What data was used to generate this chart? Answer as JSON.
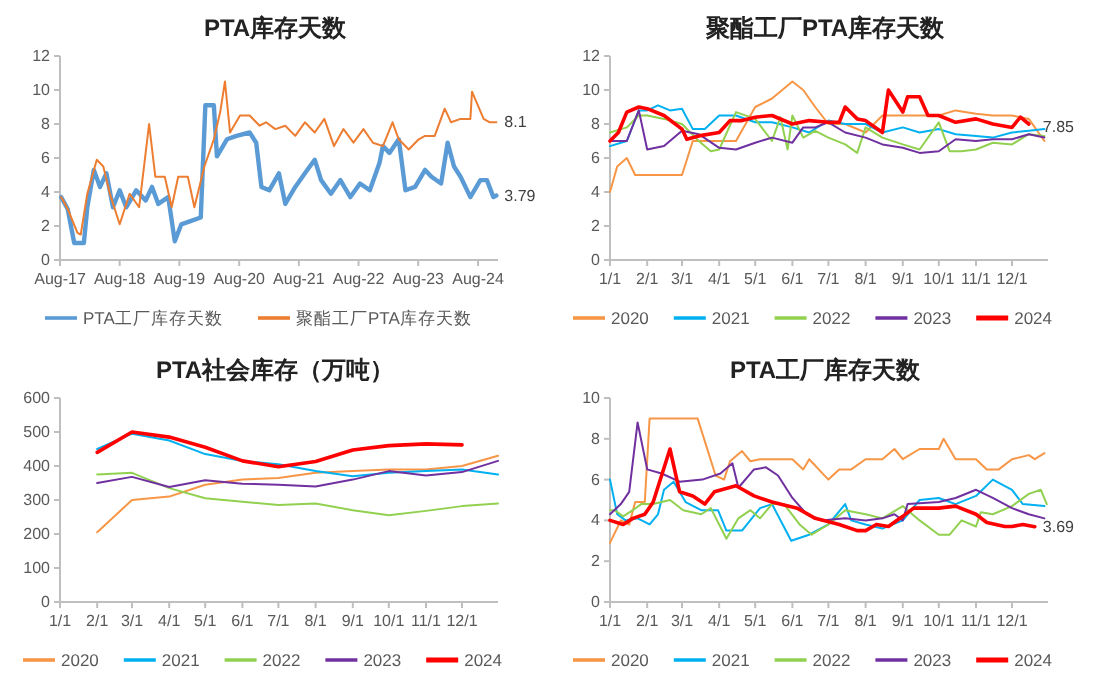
{
  "chart_data": [
    {
      "type": "line",
      "title": "PTA库存天数",
      "legend": "bottom",
      "grid": false,
      "xlim": [
        "2017-08",
        "2024-12"
      ],
      "ylim": [
        0,
        12
      ],
      "yticks": [
        0,
        2,
        4,
        6,
        8,
        10,
        12
      ],
      "xticks": [
        {
          "value": "2017-08",
          "label": "Aug-17"
        },
        {
          "value": "2018-08",
          "label": "Aug-18"
        },
        {
          "value": "2019-08",
          "label": "Aug-19"
        },
        {
          "value": "2020-08",
          "label": "Aug-20"
        },
        {
          "value": "2021-08",
          "label": "Aug-21"
        },
        {
          "value": "2022-08",
          "label": "Aug-22"
        },
        {
          "value": "2023-08",
          "label": "Aug-23"
        },
        {
          "value": "2024-08",
          "label": "Aug-24"
        }
      ],
      "series": [
        {
          "name": "PTA工厂库存天数",
          "color": "#5b9bd5",
          "x": [
            "2017-08-08",
            "2017-09-17",
            "2017-10-27",
            "2017-12-25",
            "2018-01-15",
            "2018-02-24",
            "2018-04-03",
            "2018-05-12",
            "2018-06-21",
            "2018-08-01",
            "2018-09-10",
            "2018-11-10",
            "2019-01-07",
            "2019-02-15",
            "2019-03-25",
            "2019-05-25",
            "2019-07-04",
            "2019-08-13",
            "2019-10-12",
            "2019-12-10",
            "2020-01-07",
            "2020-02-28",
            "2020-03-18",
            "2020-05-18",
            "2020-07-16",
            "2020-10-04",
            "2020-11-13",
            "2020-12-15",
            "2021-02-01",
            "2021-04-01",
            "2021-05-10",
            "2021-07-10",
            "2021-09-07",
            "2021-11-06",
            "2021-12-15",
            "2022-02-13",
            "2022-04-12",
            "2022-06-12",
            "2022-08-10",
            "2022-10-09",
            "2022-12-07",
            "2022-12-28",
            "2023-02-06",
            "2023-04-04",
            "2023-05-15",
            "2023-07-13",
            "2023-09-12",
            "2023-10-21",
            "2023-12-19",
            "2024-01-28",
            "2024-03-07",
            "2024-04-16",
            "2024-06-15",
            "2024-08-15",
            "2024-09-24",
            "2024-11-03",
            "2024-11-21"
          ],
          "values": [
            3.7,
            3,
            1,
            1,
            3.1,
            5.3,
            4.3,
            5.1,
            3.1,
            4.1,
            3.1,
            4.1,
            3.5,
            4.3,
            3.3,
            3.7,
            1.1,
            2.1,
            2.3,
            2.5,
            9.1,
            9.1,
            6.1,
            7.1,
            7.3,
            7.5,
            6.9,
            4.3,
            4.1,
            5.1,
            3.3,
            4.3,
            5.1,
            5.9,
            4.7,
            3.9,
            4.7,
            3.7,
            4.5,
            4.1,
            5.7,
            6.7,
            6.3,
            7.1,
            4.1,
            4.3,
            5.3,
            4.9,
            4.5,
            6.9,
            5.5,
            4.9,
            3.7,
            4.7,
            4.7,
            3.7,
            3.79
          ]
        },
        {
          "name": "聚酯工厂PTA库存天数",
          "color": "#ed7d31",
          "x": [
            "2017-08-08",
            "2017-09-17",
            "2017-11-16",
            "2017-12-06",
            "2018-01-15",
            "2018-03-14",
            "2018-04-23",
            "2018-06-02",
            "2018-08-01",
            "2018-10-01",
            "2018-11-28",
            "2019-01-28",
            "2019-03-07",
            "2019-05-04",
            "2019-06-15",
            "2019-07-25",
            "2019-09-22",
            "2019-11-01",
            "2020-01-01",
            "2020-02-28",
            "2020-04-07",
            "2020-05-06",
            "2020-06-06",
            "2020-08-06",
            "2020-10-04",
            "2020-12-04",
            "2021-01-12",
            "2021-03-10",
            "2021-05-10",
            "2021-07-10",
            "2021-09-07",
            "2021-11-06",
            "2022-01-04",
            "2022-03-04",
            "2022-05-01",
            "2022-07-01",
            "2022-08-31",
            "2022-10-28",
            "2022-12-28",
            "2023-02-25",
            "2023-04-04",
            "2023-06-04",
            "2023-08-04",
            "2023-09-12",
            "2023-11-10",
            "2024-01-10",
            "2024-02-18",
            "2024-04-16",
            "2024-06-15",
            "2024-06-25",
            "2024-09-04",
            "2024-10-12",
            "2024-11-21"
          ],
          "values": [
            3.7,
            3,
            1.6,
            1.5,
            3.9,
            5.9,
            5.5,
            3.9,
            2.1,
            3.9,
            3.1,
            8,
            4.9,
            4.9,
            3.1,
            4.9,
            4.9,
            3.1,
            5.5,
            7.1,
            8.7,
            10.5,
            7.5,
            8.5,
            8.5,
            7.9,
            8.1,
            7.7,
            7.9,
            7.3,
            8.1,
            7.5,
            8.3,
            6.7,
            7.7,
            6.9,
            7.7,
            6.9,
            6.7,
            8.1,
            7.1,
            6.5,
            7.1,
            7.3,
            7.3,
            8.9,
            8.1,
            8.3,
            8.3,
            9.9,
            8.3,
            8.1,
            8.1
          ]
        }
      ],
      "annotations": [
        {
          "text": "8.1",
          "x": "2024-11-21",
          "y": 8.1
        },
        {
          "text": "3.79",
          "x": "2024-11-21",
          "y": 3.79
        }
      ]
    },
    {
      "type": "line",
      "title": "聚酯工厂PTA库存天数",
      "legend": "bottom",
      "grid": false,
      "xlim": [
        "--01-01",
        "--12-31"
      ],
      "ylim": [
        0,
        12
      ],
      "yticks": [
        0,
        2,
        4,
        6,
        8,
        10,
        12
      ],
      "xticks": [
        {
          "value": "--01-01",
          "label": "1/1"
        },
        {
          "value": "--02-01",
          "label": "2/1"
        },
        {
          "value": "--03-01",
          "label": "3/1"
        },
        {
          "value": "--04-01",
          "label": "4/1"
        },
        {
          "value": "--05-01",
          "label": "5/1"
        },
        {
          "value": "--06-01",
          "label": "6/1"
        },
        {
          "value": "--07-01",
          "label": "7/1"
        },
        {
          "value": "--08-01",
          "label": "8/1"
        },
        {
          "value": "--09-01",
          "label": "9/1"
        },
        {
          "value": "--10-01",
          "label": "10/1"
        },
        {
          "value": "--11-01",
          "label": "11/1"
        },
        {
          "value": "--12-01",
          "label": "12/1"
        }
      ],
      "series": [
        {
          "name": "2020",
          "color": "#f79646",
          "x": [
            "--01-01",
            "--01-07",
            "--01-15",
            "--01-22",
            "--02-01",
            "--03-01",
            "--03-10",
            "--04-01",
            "--04-15",
            "--05-01",
            "--05-15",
            "--06-01",
            "--06-10",
            "--06-20",
            "--07-01",
            "--07-15",
            "--08-01",
            "--08-15",
            "--09-01",
            "--09-15",
            "--10-01",
            "--10-15",
            "--11-01",
            "--11-15",
            "--12-01",
            "--12-15",
            "--12-28"
          ],
          "values": [
            4,
            5.5,
            6,
            5,
            5,
            5,
            7,
            7,
            7,
            9,
            9.5,
            10.5,
            10,
            9,
            8,
            8,
            7.5,
            8.5,
            8.5,
            8.5,
            8.5,
            8.8,
            8.6,
            8.5,
            8.5,
            8.3,
            7
          ]
        },
        {
          "name": "2021",
          "color": "#00b0f0",
          "x": [
            "--01-01",
            "--01-15",
            "--01-25",
            "--02-01",
            "--02-10",
            "--02-20",
            "--03-01",
            "--03-10",
            "--03-20",
            "--04-01",
            "--04-15",
            "--05-01",
            "--05-15",
            "--06-01",
            "--06-15",
            "--07-01",
            "--07-15",
            "--08-01",
            "--08-15",
            "--09-01",
            "--09-15",
            "--10-01",
            "--10-15",
            "--11-01",
            "--11-15",
            "--12-01",
            "--12-15",
            "--12-28"
          ],
          "values": [
            6.7,
            7,
            8.8,
            8.8,
            9.1,
            8.8,
            8.9,
            7.7,
            7.7,
            8.5,
            8.5,
            8.1,
            8.1,
            7.8,
            7.5,
            8.2,
            8,
            8,
            7.5,
            7.8,
            7.5,
            7.7,
            7.4,
            7.3,
            7.2,
            7.5,
            7.6,
            7.7
          ]
        },
        {
          "name": "2022",
          "color": "#92d050",
          "x": [
            "--01-01",
            "--01-15",
            "--01-25",
            "--02-01",
            "--02-15",
            "--03-01",
            "--03-15",
            "--03-25",
            "--04-01",
            "--04-15",
            "--05-01",
            "--05-15",
            "--05-22",
            "--05-28",
            "--06-01",
            "--06-10",
            "--06-20",
            "--07-01",
            "--07-15",
            "--07-25",
            "--08-01",
            "--08-15",
            "--09-01",
            "--09-15",
            "--10-01",
            "--10-10",
            "--10-20",
            "--11-01",
            "--11-15",
            "--12-01",
            "--12-15",
            "--12-28"
          ],
          "values": [
            7.5,
            7.8,
            8.5,
            8.5,
            8.3,
            8,
            7,
            6.4,
            6.5,
            8.7,
            8.3,
            7,
            8.4,
            6.5,
            8.5,
            7.2,
            7.6,
            7.2,
            6.8,
            6.3,
            7.8,
            7.2,
            6.8,
            6.5,
            8.1,
            6.4,
            6.4,
            6.5,
            6.9,
            6.8,
            7.4,
            7.3
          ]
        },
        {
          "name": "2023",
          "color": "#7030a0",
          "x": [
            "--01-01",
            "--01-15",
            "--01-25",
            "--02-01",
            "--02-15",
            "--03-01",
            "--03-15",
            "--04-01",
            "--04-15",
            "--05-01",
            "--05-15",
            "--06-01",
            "--06-10",
            "--06-20",
            "--07-01",
            "--07-15",
            "--08-01",
            "--08-15",
            "--09-01",
            "--09-15",
            "--10-01",
            "--10-15",
            "--11-01",
            "--11-15",
            "--12-01",
            "--12-15",
            "--12-28"
          ],
          "values": [
            7,
            7,
            8.8,
            6.5,
            6.7,
            7.6,
            7.4,
            6.6,
            6.5,
            6.9,
            7.2,
            6.9,
            7.8,
            7.8,
            8.1,
            7.5,
            7.2,
            6.8,
            6.6,
            6.3,
            6.4,
            7.1,
            7,
            7.1,
            7.1,
            7.4,
            7.2
          ]
        },
        {
          "name": "2024",
          "color": "#ff0000",
          "x": [
            "--01-01",
            "--01-08",
            "--01-15",
            "--01-25",
            "--02-01",
            "--02-15",
            "--03-01",
            "--03-05",
            "--03-15",
            "--04-01",
            "--04-10",
            "--04-20",
            "--05-01",
            "--05-15",
            "--06-01",
            "--06-15",
            "--07-01",
            "--07-10",
            "--07-15",
            "--07-25",
            "--08-01",
            "--08-15",
            "--08-20",
            "--09-01",
            "--09-05",
            "--09-15",
            "--09-22",
            "--10-01",
            "--10-15",
            "--11-01",
            "--11-15",
            "--12-01",
            "--12-08",
            "--12-15"
          ],
          "values": [
            7,
            7.5,
            8.7,
            9,
            8.9,
            8.5,
            7.7,
            7.1,
            7.3,
            7.5,
            8.2,
            8.2,
            8.4,
            8.5,
            8,
            8.2,
            8.1,
            8.1,
            9,
            8.3,
            8.2,
            7.5,
            10,
            8.7,
            9.6,
            9.6,
            8.5,
            8.5,
            8.1,
            8.3,
            8,
            7.8,
            8.4,
            8
          ]
        }
      ],
      "annotations": [
        {
          "text": "7.85",
          "x": "--12-20",
          "y": 7.85
        }
      ]
    },
    {
      "type": "line",
      "title": "PTA社会库存（万吨）",
      "legend": "bottom",
      "grid": false,
      "xlim": [
        "--01-01",
        "--12-31"
      ],
      "ylim": [
        0,
        600
      ],
      "yticks": [
        0,
        100,
        200,
        300,
        400,
        500,
        600
      ],
      "xticks": [
        {
          "value": "--01-01",
          "label": "1/1"
        },
        {
          "value": "--02-01",
          "label": "2/1"
        },
        {
          "value": "--03-01",
          "label": "3/1"
        },
        {
          "value": "--04-01",
          "label": "4/1"
        },
        {
          "value": "--05-01",
          "label": "5/1"
        },
        {
          "value": "--06-01",
          "label": "6/1"
        },
        {
          "value": "--07-01",
          "label": "7/1"
        },
        {
          "value": "--08-01",
          "label": "8/1"
        },
        {
          "value": "--09-01",
          "label": "9/1"
        },
        {
          "value": "--10-01",
          "label": "10/1"
        },
        {
          "value": "--11-01",
          "label": "11/1"
        },
        {
          "value": "--12-01",
          "label": "12/1"
        }
      ],
      "x": [
        "--02-01",
        "--03-01",
        "--04-01",
        "--05-01",
        "--06-01",
        "--07-01",
        "--08-01",
        "--09-01",
        "--10-01",
        "--11-01",
        "--12-01",
        "--12-31"
      ],
      "series": [
        {
          "name": "2020",
          "color": "#f79646",
          "values": [
            205,
            300,
            310,
            345,
            360,
            365,
            380,
            385,
            390,
            390,
            400,
            430
          ]
        },
        {
          "name": "2021",
          "color": "#00b0f0",
          "values": [
            450,
            495,
            475,
            435,
            415,
            405,
            385,
            370,
            380,
            385,
            390,
            375
          ]
        },
        {
          "name": "2022",
          "color": "#92d050",
          "values": [
            375,
            380,
            335,
            305,
            295,
            285,
            290,
            270,
            255,
            268,
            282,
            290
          ]
        },
        {
          "name": "2023",
          "color": "#7030a0",
          "values": [
            350,
            368,
            338,
            358,
            348,
            345,
            340,
            360,
            385,
            372,
            382,
            415
          ]
        },
        {
          "name": "2024",
          "color": "#ff0000",
          "values": [
            440,
            500,
            485,
            455,
            415,
            398,
            413,
            447,
            460,
            465,
            462,
            null
          ]
        }
      ]
    },
    {
      "type": "line",
      "title": "PTA工厂库存天数",
      "legend": "bottom",
      "grid": false,
      "xlim": [
        "--01-01",
        "--12-31"
      ],
      "ylim": [
        0,
        10
      ],
      "yticks": [
        0,
        2,
        4,
        6,
        8,
        10
      ],
      "xticks": [
        {
          "value": "--01-01",
          "label": "1/1"
        },
        {
          "value": "--02-01",
          "label": "2/1"
        },
        {
          "value": "--03-01",
          "label": "3/1"
        },
        {
          "value": "--04-01",
          "label": "4/1"
        },
        {
          "value": "--05-01",
          "label": "5/1"
        },
        {
          "value": "--06-01",
          "label": "6/1"
        },
        {
          "value": "--07-01",
          "label": "7/1"
        },
        {
          "value": "--08-01",
          "label": "8/1"
        },
        {
          "value": "--09-01",
          "label": "9/1"
        },
        {
          "value": "--10-01",
          "label": "10/1"
        },
        {
          "value": "--11-01",
          "label": "11/1"
        },
        {
          "value": "--12-01",
          "label": "12/1"
        }
      ],
      "series": [
        {
          "name": "2020",
          "color": "#f79646",
          "x": [
            "--01-01",
            "--01-10",
            "--01-17",
            "--01-22",
            "--01-30",
            "--02-03",
            "--03-14",
            "--03-29",
            "--04-05",
            "--04-10",
            "--04-20",
            "--04-27",
            "--05-05",
            "--06-01",
            "--06-10",
            "--06-15",
            "--07-01",
            "--07-10",
            "--07-20",
            "--08-01",
            "--08-15",
            "--08-25",
            "--09-01",
            "--09-15",
            "--10-01",
            "--10-05",
            "--10-15",
            "--11-01",
            "--11-10",
            "--11-20",
            "--12-01",
            "--12-15",
            "--12-20",
            "--12-28"
          ],
          "values": [
            2.9,
            4,
            3.8,
            4.9,
            4.9,
            9,
            9,
            6.2,
            6,
            6.9,
            7.4,
            6.9,
            7,
            7,
            6.5,
            7,
            6,
            6.5,
            6.5,
            7,
            7,
            7.5,
            7,
            7.5,
            7.5,
            8,
            7,
            7,
            6.5,
            6.5,
            7,
            7.2,
            7,
            7.3
          ]
        },
        {
          "name": "2021",
          "color": "#00b0f0",
          "x": [
            "--01-01",
            "--01-07",
            "--01-14",
            "--01-24",
            "--02-03",
            "--02-10",
            "--02-15",
            "--02-23",
            "--03-04",
            "--03-17",
            "--03-31",
            "--04-07",
            "--04-20",
            "--05-05",
            "--05-15",
            "--05-31",
            "--06-15",
            "--07-01",
            "--07-15",
            "--07-20",
            "--08-01",
            "--08-15",
            "--09-01",
            "--09-15",
            "--10-01",
            "--10-15",
            "--11-01",
            "--11-15",
            "--12-01",
            "--12-10",
            "--12-28"
          ],
          "values": [
            6,
            4.3,
            4,
            4.1,
            3.8,
            4.3,
            5.5,
            5.9,
            4.9,
            4.5,
            4.5,
            3.5,
            3.5,
            4.6,
            4.8,
            3,
            3.3,
            3.8,
            4.8,
            4,
            3.8,
            3.6,
            4,
            5,
            5.1,
            4.8,
            5.2,
            6,
            5.5,
            4.8,
            4.7
          ]
        },
        {
          "name": "2022",
          "color": "#92d050",
          "x": [
            "--01-01",
            "--01-05",
            "--01-12",
            "--01-20",
            "--01-27",
            "--02-06",
            "--02-20",
            "--03-02",
            "--03-17",
            "--03-25",
            "--04-07",
            "--04-17",
            "--04-27",
            "--05-05",
            "--05-15",
            "--05-25",
            "--06-07",
            "--06-17",
            "--07-01",
            "--07-15",
            "--08-01",
            "--08-15",
            "--09-01",
            "--09-15",
            "--10-01",
            "--10-10",
            "--10-20",
            "--11-01",
            "--11-05",
            "--11-15",
            "--12-01",
            "--12-15",
            "--12-25",
            "--12-30"
          ],
          "values": [
            4.5,
            4.5,
            4.2,
            4.5,
            4.8,
            4.8,
            5,
            4.5,
            4.3,
            4.6,
            3.1,
            4.1,
            4.5,
            4.1,
            4.8,
            4.8,
            3.8,
            3.3,
            3.8,
            4.5,
            4.3,
            4.1,
            4.7,
            4,
            3.3,
            3.3,
            4,
            3.7,
            4.4,
            4.3,
            4.7,
            5.3,
            5.5,
            4.8
          ]
        },
        {
          "name": "2023",
          "color": "#7030a0",
          "x": [
            "--01-01",
            "--01-10",
            "--01-17",
            "--01-24",
            "--02-01",
            "--02-13",
            "--02-28",
            "--03-18",
            "--04-02",
            "--04-12",
            "--04-17",
            "--04-30",
            "--05-10",
            "--05-20",
            "--06-01",
            "--06-13",
            "--06-25",
            "--07-15",
            "--08-01",
            "--08-15",
            "--08-25",
            "--09-01",
            "--09-05",
            "--10-01",
            "--10-15",
            "--11-01",
            "--11-15",
            "--12-01",
            "--12-15",
            "--12-28"
          ],
          "values": [
            4.3,
            4.8,
            5.4,
            8.8,
            6.5,
            6.3,
            5.9,
            6,
            6.3,
            6.8,
            5.6,
            6.5,
            6.6,
            6.2,
            5.1,
            4.3,
            4,
            4.1,
            4,
            4.1,
            4.3,
            4,
            4.8,
            4.9,
            5.1,
            5.5,
            5.1,
            4.6,
            4.3,
            4.1
          ]
        },
        {
          "name": "2024",
          "color": "#ff0000",
          "x": [
            "--01-01",
            "--01-12",
            "--01-20",
            "--01-30",
            "--02-06",
            "--02-20",
            "--02-28",
            "--03-10",
            "--03-20",
            "--03-28",
            "--04-15",
            "--04-30",
            "--05-15",
            "--06-05",
            "--06-20",
            "--07-10",
            "--07-25",
            "--08-01",
            "--08-10",
            "--08-20",
            "--09-01",
            "--09-10",
            "--10-01",
            "--10-15",
            "--11-01",
            "--11-10",
            "--11-25",
            "--12-01",
            "--12-10",
            "--12-20"
          ],
          "values": [
            4,
            3.8,
            4.1,
            4.3,
            4.9,
            7.5,
            5.4,
            5.2,
            4.8,
            5.4,
            5.7,
            5.2,
            4.9,
            4.6,
            4.1,
            3.8,
            3.5,
            3.5,
            3.8,
            3.7,
            4.2,
            4.6,
            4.6,
            4.7,
            4.3,
            3.9,
            3.7,
            3.7,
            3.8,
            3.69
          ]
        }
      ],
      "annotations": [
        {
          "text": "3.69",
          "x": "--12-20",
          "y": 3.69
        }
      ]
    }
  ]
}
